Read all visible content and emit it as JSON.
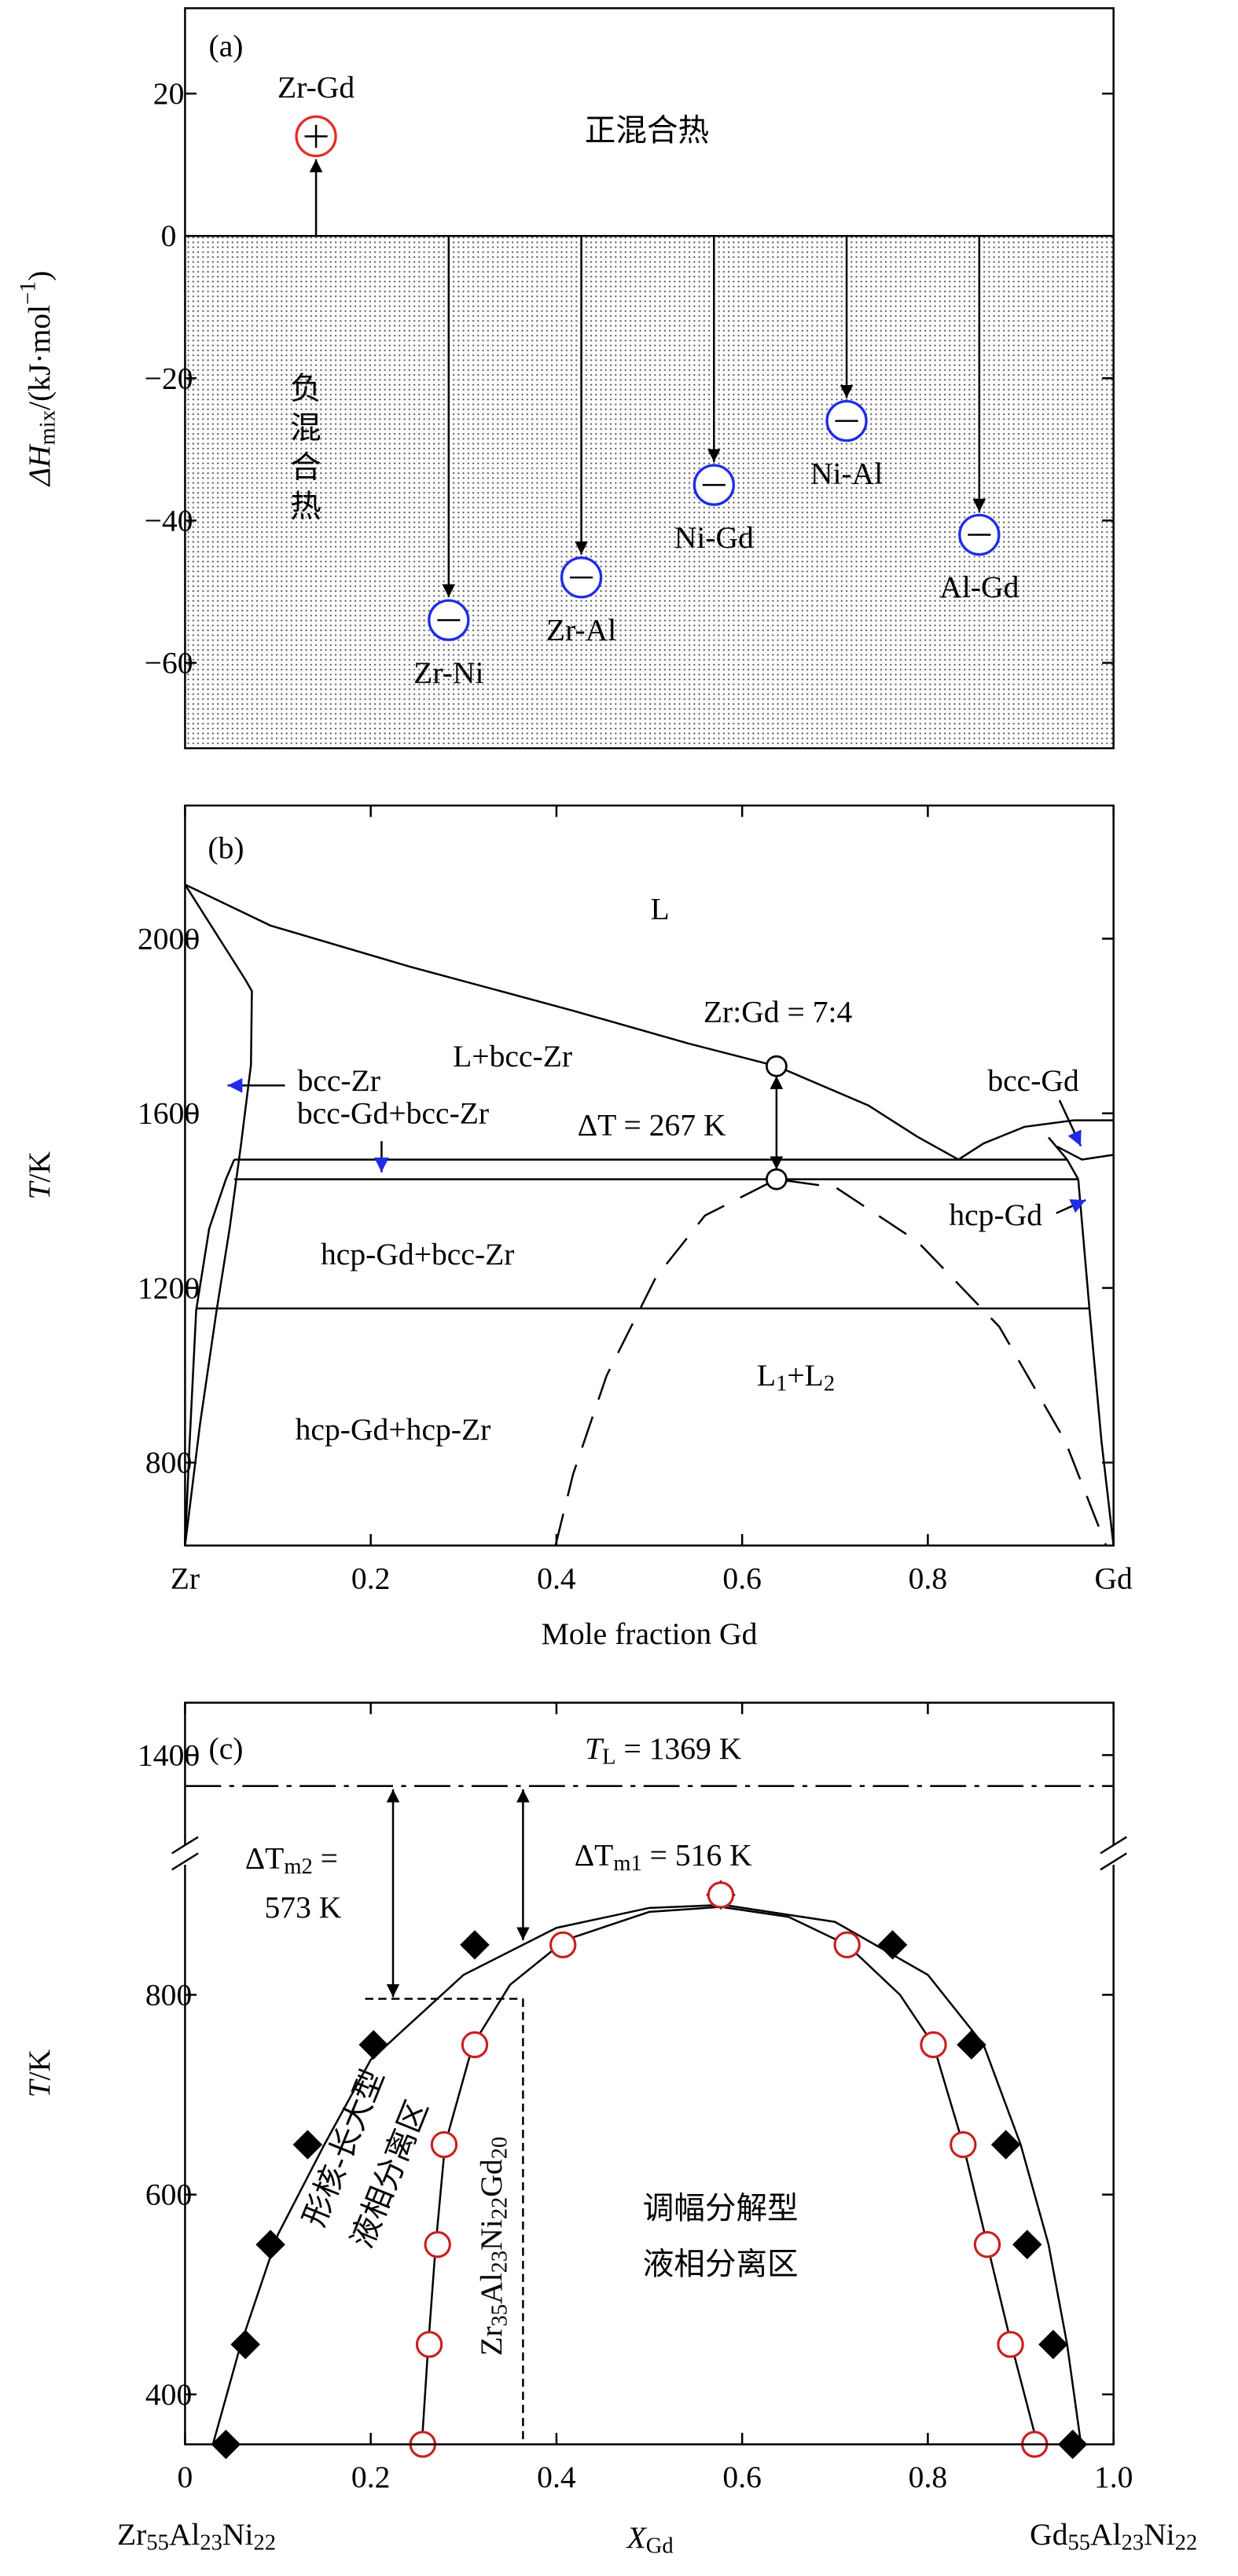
{
  "chart_data": [
    {
      "type": "arrow",
      "panel": "(a)",
      "ylabel": [
        "ΔH",
        "mix",
        "/(kJ·mol",
        "−1",
        ")"
      ],
      "categories": [
        "Zr-Gd",
        "Zr-Ni",
        "Zr-Al",
        "Ni-Gd",
        "Ni-Al",
        "Al-Gd"
      ],
      "values": [
        14,
        -54,
        -48,
        -35,
        -26,
        -42
      ],
      "colors": [
        "#e0302a",
        "#1f2be8",
        "#1f2be8",
        "#1f2be8",
        "#1f2be8",
        "#1f2be8"
      ],
      "ylim": [
        -72,
        32
      ],
      "yticks": [
        20,
        0,
        {
          "value": -20,
          "label": "−20"
        },
        {
          "value": -40,
          "label": "−40"
        },
        {
          "value": -60,
          "label": "−60"
        }
      ],
      "annotations": [
        {
          "text": "正混合热",
          "color": "#e0302a"
        },
        {
          "text": "负混合热",
          "color": "#1f2be8"
        }
      ]
    },
    {
      "type": "line",
      "panel": "(b)",
      "xlabel": "Mole fraction Gd",
      "ylabel": [
        "T",
        "/K"
      ],
      "xlim": [
        0,
        1
      ],
      "xticks": [
        {
          "value": 0,
          "label": "Zr"
        },
        0.2,
        0.4,
        0.6,
        0.8,
        {
          "value": 1,
          "label": "Gd"
        }
      ],
      "ylim": [
        610,
        2305
      ],
      "yticks": [
        800,
        1200,
        1600,
        2000
      ],
      "series": [
        {
          "color": "#000000",
          "x": [
            0,
            0.092,
            0.242,
            0.418,
            0.542,
            0.637,
            0.736,
            0.789,
            0.833,
            0.86,
            0.904,
            0.957,
            1
          ],
          "values": [
            2124,
            2030,
            1936,
            1835,
            1760,
            1708,
            1618,
            1546,
            1494,
            1531,
            1569,
            1584,
            1584
          ]
        },
        {
          "color": "#000000",
          "x": [
            0,
            0.065,
            0.072,
            0.071,
            0.06,
            0.048,
            0.034,
            0.016,
            0
          ],
          "values": [
            2124,
            1906,
            1880,
            1711,
            1524,
            1336,
            1149,
            886,
            610
          ]
        },
        {
          "color": "#000000",
          "x": [
            0,
            0.005,
            0.012,
            0.026,
            0.044,
            0.053
          ],
          "values": [
            610,
            848,
            1149,
            1336,
            1449,
            1494
          ]
        },
        {
          "color": "#000000",
          "x": [
            0.053,
            0.95
          ],
          "values": [
            1494,
            1494
          ]
        },
        {
          "color": "#000000",
          "x": [
            0.053,
            0.962
          ],
          "values": [
            1449,
            1449
          ]
        },
        {
          "color": "#000000",
          "x": [
            0.012,
            0.974
          ],
          "values": [
            1153,
            1153
          ]
        },
        {
          "color": "#000000",
          "x": [
            0.962,
            0.974,
            0.987,
            1
          ],
          "values": [
            1449,
            1153,
            849,
            610
          ]
        },
        {
          "color": "#000000",
          "x": [
            0.939,
            0.966,
            1
          ],
          "values": [
            1524,
            1494,
            1505
          ]
        },
        {
          "color": "#000000",
          "x": [
            0.93,
            0.95,
            0.962
          ],
          "values": [
            1545,
            1494,
            1449
          ]
        },
        {
          "color": "#d42a2a",
          "dashed": true,
          "x": [
            0.399,
            0.418,
            0.454,
            0.507,
            0.56,
            0.637,
            0.701,
            0.789,
            0.877,
            0.948,
            0.992
          ],
          "values": [
            610,
            774,
            999,
            1224,
            1366,
            1449,
            1430,
            1306,
            1111,
            849,
            610
          ]
        }
      ],
      "points": {
        "x": [
          0.637,
          0.637
        ],
        "values": [
          1708,
          1449
        ]
      },
      "annotations": [
        {
          "text": "L",
          "color": "#1f2be8"
        },
        {
          "text": "Zr:Gd = 7:4",
          "color": "#000000"
        },
        {
          "text": "L+bcc-Zr",
          "color": "#1f2be8"
        },
        {
          "text": "bcc-Zr",
          "color": "#1f2be8"
        },
        {
          "text": "bcc-Gd+bcc-Zr",
          "color": "#1f2be8"
        },
        {
          "text": "ΔT = 267 K",
          "color": "#000000"
        },
        {
          "text": "bcc-Gd",
          "color": "#1f2be8"
        },
        {
          "text": "hcp-Gd",
          "color": "#1f2be8"
        },
        {
          "text": "hcp-Gd+bcc-Zr",
          "color": "#1f2be8"
        },
        {
          "text": [
            "L",
            "1",
            "+L",
            "2"
          ],
          "color": "#d42a2a"
        },
        {
          "text": "hcp-Gd+hcp-Zr",
          "color": "#1f2be8"
        }
      ]
    },
    {
      "type": "scatter",
      "panel": "(c)",
      "xlabel": [
        "X",
        "Gd"
      ],
      "ylabel": [
        "T",
        "/K"
      ],
      "xlim": [
        0,
        1
      ],
      "xticks": [
        0,
        0.2,
        0.4,
        0.6,
        0.8,
        {
          "value": 1,
          "label": "1.0"
        }
      ],
      "ylim": [
        350,
        1450
      ],
      "ybreak": [
        940,
        1300
      ],
      "yticks": [
        400,
        600,
        800,
        1400
      ],
      "series": [
        {
          "marker": "diamond",
          "color": "#000000",
          "x": [
            0.044,
            0.065,
            0.092,
            0.132,
            0.203,
            0.312,
            0.577,
            0.762,
            0.847,
            0.884,
            0.907,
            0.935,
            0.956
          ],
          "values": [
            350,
            450,
            550,
            650,
            750,
            850,
            900,
            850,
            750,
            650,
            550,
            450,
            350
          ]
        },
        {
          "marker": "circle",
          "color": "#c8201f",
          "x": [
            0.256,
            0.263,
            0.272,
            0.279,
            0.312,
            0.407,
            0.577,
            0.713,
            0.806,
            0.838,
            0.864,
            0.889,
            0.915
          ],
          "values": [
            350,
            450,
            550,
            650,
            750,
            850,
            900,
            850,
            750,
            650,
            550,
            450,
            350
          ]
        }
      ],
      "fits": [
        {
          "color": "#000000",
          "x": [
            0.03,
            0.06,
            0.1,
            0.15,
            0.2,
            0.3,
            0.4,
            0.5,
            0.58,
            0.7,
            0.8,
            0.86,
            0.9,
            0.93,
            0.95,
            0.965
          ],
          "values": [
            350,
            450,
            560,
            650,
            735,
            820,
            867,
            887,
            890,
            873,
            820,
            750,
            650,
            550,
            450,
            350
          ]
        },
        {
          "color": "#c8201f",
          "x": [
            0.255,
            0.262,
            0.27,
            0.28,
            0.31,
            0.35,
            0.41,
            0.5,
            0.577,
            0.65,
            0.713,
            0.77,
            0.806,
            0.838,
            0.864,
            0.89,
            0.918
          ],
          "values": [
            350,
            450,
            550,
            650,
            750,
            810,
            855,
            883,
            888,
            878,
            850,
            800,
            750,
            650,
            550,
            450,
            350
          ]
        }
      ],
      "tl": 1369,
      "dashed_x": 0.364,
      "dashed_y": 796,
      "arrows": [
        {
          "x": 0.224,
          "values": [
            1369,
            796
          ]
        },
        {
          "x": 0.364,
          "values": [
            1369,
            853
          ]
        }
      ],
      "annotations": [
        {
          "text": [
            "T",
            "L",
            " = 1369 K"
          ]
        },
        {
          "text": [
            "ΔT",
            "m2",
            " ="
          ]
        },
        {
          "text": "573 K"
        },
        {
          "text": [
            "ΔT",
            "m1",
            " = 516 K"
          ]
        },
        {
          "text": "形核-长大型"
        },
        {
          "text": "液相分离区"
        },
        {
          "text": "调幅分解型"
        },
        {
          "text": "液相分离区"
        },
        {
          "text": [
            "Zr",
            "35",
            "Al",
            "23",
            "Ni",
            "22",
            "Gd",
            "20"
          ]
        },
        {
          "text": [
            "Zr",
            "55",
            "Al",
            "23",
            "Ni",
            "22"
          ]
        },
        {
          "text": [
            "Gd",
            "55",
            "Al",
            "23",
            "Ni",
            "22"
          ]
        }
      ]
    }
  ]
}
